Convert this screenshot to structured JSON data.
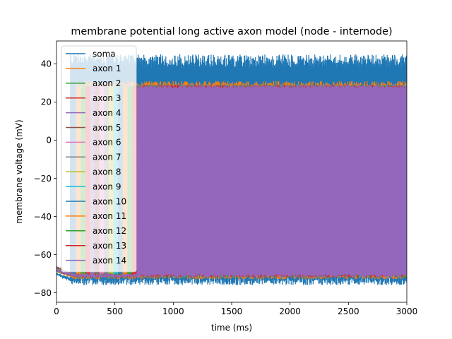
{
  "chart_data": {
    "type": "line",
    "title": "membrane potential long active axon model (node - internode)",
    "xlabel": "time (ms)",
    "ylabel": "membrane voltage (mV)",
    "xlim": [
      0,
      3000
    ],
    "ylim": [
      -85,
      52
    ],
    "xticks": [
      0,
      500,
      1000,
      1500,
      2000,
      2500,
      3000
    ],
    "yticks": [
      -80,
      -60,
      -40,
      -20,
      0,
      20,
      40
    ],
    "grid": false,
    "legend_position": "upper-left",
    "series": [
      {
        "name": "soma",
        "color": "#1f77b4",
        "values": [
          {
            "x": 0,
            "y": -70
          },
          {
            "x": 150,
            "y": -74
          },
          {
            "x": 3000,
            "y": -74
          }
        ],
        "peak_range": [
          38,
          45
        ],
        "trough_range": [
          -76,
          -72
        ]
      },
      {
        "name": "axon 1",
        "color": "#ff7f0e",
        "values": [
          {
            "x": 0,
            "y": -68
          },
          {
            "x": 150,
            "y": -72
          },
          {
            "x": 3000,
            "y": -72
          }
        ],
        "peak_range": [
          27,
          31
        ],
        "trough_range": [
          -73,
          -70
        ]
      },
      {
        "name": "axon 2",
        "color": "#2ca02c",
        "values": [
          {
            "x": 0,
            "y": -68
          },
          {
            "x": 150,
            "y": -71
          },
          {
            "x": 3000,
            "y": -71
          }
        ],
        "peak_range": [
          27,
          29
        ],
        "trough_range": [
          -72,
          -70
        ]
      },
      {
        "name": "axon 3",
        "color": "#d62728",
        "values": [
          {
            "x": 0,
            "y": -68
          },
          {
            "x": 150,
            "y": -71
          },
          {
            "x": 3000,
            "y": -71
          }
        ],
        "peak_range": [
          27,
          29
        ],
        "trough_range": [
          -72,
          -70
        ]
      },
      {
        "name": "axon 4",
        "color": "#9467bd",
        "values": [
          {
            "x": 0,
            "y": -68
          },
          {
            "x": 150,
            "y": -71
          },
          {
            "x": 3000,
            "y": -71
          }
        ],
        "peak_range": [
          27,
          29
        ],
        "trough_range": [
          -72,
          -70
        ]
      },
      {
        "name": "axon 5",
        "color": "#8c564b",
        "values": [
          {
            "x": 0,
            "y": -67
          },
          {
            "x": 150,
            "y": -71
          },
          {
            "x": 3000,
            "y": -71
          }
        ],
        "peak_range": [
          27,
          29
        ],
        "trough_range": [
          -72,
          -70
        ]
      },
      {
        "name": "axon 6",
        "color": "#e377c2",
        "values": [
          {
            "x": 0,
            "y": -68
          },
          {
            "x": 150,
            "y": -71
          },
          {
            "x": 3000,
            "y": -71
          }
        ],
        "peak_range": [
          27,
          29
        ],
        "trough_range": [
          -72,
          -70
        ]
      },
      {
        "name": "axon 7",
        "color": "#7f7f7f",
        "values": [
          {
            "x": 0,
            "y": -68
          },
          {
            "x": 150,
            "y": -71
          },
          {
            "x": 3000,
            "y": -71
          }
        ],
        "peak_range": [
          27,
          29
        ],
        "trough_range": [
          -72,
          -70
        ]
      },
      {
        "name": "axon 8",
        "color": "#bcbd22",
        "values": [
          {
            "x": 0,
            "y": -68
          },
          {
            "x": 150,
            "y": -71
          },
          {
            "x": 3000,
            "y": -71
          }
        ],
        "peak_range": [
          27,
          29
        ],
        "trough_range": [
          -72,
          -70
        ]
      },
      {
        "name": "axon 9",
        "color": "#17becf",
        "values": [
          {
            "x": 0,
            "y": -68
          },
          {
            "x": 150,
            "y": -71
          },
          {
            "x": 3000,
            "y": -71
          }
        ],
        "peak_range": [
          27,
          29
        ],
        "trough_range": [
          -72,
          -70
        ]
      },
      {
        "name": "axon 10",
        "color": "#1f77b4",
        "values": [
          {
            "x": 0,
            "y": -68
          },
          {
            "x": 150,
            "y": -71
          },
          {
            "x": 3000,
            "y": -71
          }
        ],
        "peak_range": [
          27,
          29
        ],
        "trough_range": [
          -72,
          -70
        ]
      },
      {
        "name": "axon 11",
        "color": "#ff7f0e",
        "values": [
          {
            "x": 0,
            "y": -68
          },
          {
            "x": 150,
            "y": -71
          },
          {
            "x": 3000,
            "y": -71
          }
        ],
        "peak_range": [
          27,
          29
        ],
        "trough_range": [
          -72,
          -70
        ]
      },
      {
        "name": "axon 12",
        "color": "#2ca02c",
        "values": [
          {
            "x": 0,
            "y": -68
          },
          {
            "x": 150,
            "y": -71
          },
          {
            "x": 3000,
            "y": -71
          }
        ],
        "peak_range": [
          27,
          29
        ],
        "trough_range": [
          -72,
          -70
        ]
      },
      {
        "name": "axon 13",
        "color": "#d62728",
        "values": [
          {
            "x": 0,
            "y": -68
          },
          {
            "x": 150,
            "y": -71
          },
          {
            "x": 3000,
            "y": -71
          }
        ],
        "peak_range": [
          27,
          29
        ],
        "trough_range": [
          -72,
          -70
        ]
      },
      {
        "name": "axon 14",
        "color": "#9467bd",
        "values": [
          {
            "x": 0,
            "y": -68
          },
          {
            "x": 150,
            "y": -71
          },
          {
            "x": 3000,
            "y": -71
          }
        ],
        "peak_range": [
          27,
          29
        ],
        "trough_range": [
          -72,
          -70
        ]
      }
    ]
  }
}
